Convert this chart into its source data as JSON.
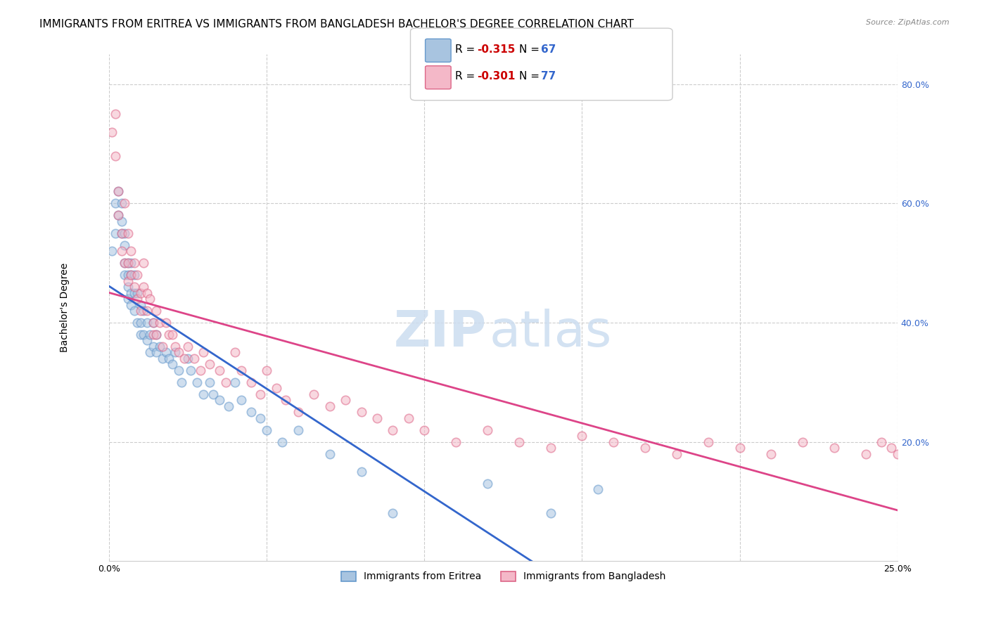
{
  "title": "IMMIGRANTS FROM ERITREA VS IMMIGRANTS FROM BANGLADESH BACHELOR'S DEGREE CORRELATION CHART",
  "source": "Source: ZipAtlas.com",
  "ylabel": "Bachelor's Degree",
  "x_min": 0.0,
  "x_max": 0.25,
  "y_min": 0.0,
  "y_max": 0.85,
  "yticks_right": [
    0.2,
    0.4,
    0.6,
    0.8
  ],
  "ytick_labels_right": [
    "20.0%",
    "40.0%",
    "60.0%",
    "80.0%"
  ],
  "xticks": [
    0.0,
    0.05,
    0.1,
    0.15,
    0.2,
    0.25
  ],
  "gridline_color": "#cccccc",
  "background_color": "#ffffff",
  "series": [
    {
      "name": "Immigrants from Eritrea",
      "color": "#a8c4e0",
      "edge_color": "#6699cc",
      "R": -0.315,
      "N": 67,
      "line_color": "#3366cc",
      "x": [
        0.001,
        0.002,
        0.002,
        0.003,
        0.003,
        0.004,
        0.004,
        0.004,
        0.005,
        0.005,
        0.005,
        0.005,
        0.006,
        0.006,
        0.006,
        0.006,
        0.007,
        0.007,
        0.007,
        0.007,
        0.008,
        0.008,
        0.008,
        0.009,
        0.009,
        0.01,
        0.01,
        0.01,
        0.011,
        0.011,
        0.012,
        0.012,
        0.013,
        0.013,
        0.014,
        0.014,
        0.015,
        0.015,
        0.016,
        0.017,
        0.018,
        0.019,
        0.02,
        0.021,
        0.022,
        0.023,
        0.025,
        0.026,
        0.028,
        0.03,
        0.032,
        0.033,
        0.035,
        0.038,
        0.04,
        0.042,
        0.045,
        0.048,
        0.05,
        0.055,
        0.06,
        0.07,
        0.08,
        0.09,
        0.12,
        0.14,
        0.155
      ],
      "y": [
        0.52,
        0.55,
        0.6,
        0.62,
        0.58,
        0.55,
        0.57,
        0.6,
        0.53,
        0.5,
        0.48,
        0.55,
        0.5,
        0.48,
        0.46,
        0.44,
        0.5,
        0.48,
        0.45,
        0.43,
        0.48,
        0.45,
        0.42,
        0.45,
        0.4,
        0.43,
        0.4,
        0.38,
        0.42,
        0.38,
        0.4,
        0.37,
        0.38,
        0.35,
        0.4,
        0.36,
        0.38,
        0.35,
        0.36,
        0.34,
        0.35,
        0.34,
        0.33,
        0.35,
        0.32,
        0.3,
        0.34,
        0.32,
        0.3,
        0.28,
        0.3,
        0.28,
        0.27,
        0.26,
        0.3,
        0.27,
        0.25,
        0.24,
        0.22,
        0.2,
        0.22,
        0.18,
        0.15,
        0.08,
        0.13,
        0.08,
        0.12
      ]
    },
    {
      "name": "Immigrants from Bangladesh",
      "color": "#f4b8c8",
      "edge_color": "#dd6688",
      "R": -0.301,
      "N": 77,
      "line_color": "#dd4488",
      "x": [
        0.001,
        0.002,
        0.002,
        0.003,
        0.003,
        0.004,
        0.004,
        0.005,
        0.005,
        0.006,
        0.006,
        0.006,
        0.007,
        0.007,
        0.008,
        0.008,
        0.009,
        0.009,
        0.01,
        0.01,
        0.011,
        0.011,
        0.012,
        0.012,
        0.013,
        0.014,
        0.014,
        0.015,
        0.015,
        0.016,
        0.017,
        0.018,
        0.019,
        0.02,
        0.021,
        0.022,
        0.024,
        0.025,
        0.027,
        0.029,
        0.03,
        0.032,
        0.035,
        0.037,
        0.04,
        0.042,
        0.045,
        0.048,
        0.05,
        0.053,
        0.056,
        0.06,
        0.065,
        0.07,
        0.075,
        0.08,
        0.085,
        0.09,
        0.095,
        0.1,
        0.11,
        0.12,
        0.13,
        0.14,
        0.15,
        0.16,
        0.17,
        0.18,
        0.19,
        0.2,
        0.21,
        0.22,
        0.23,
        0.24,
        0.245,
        0.248,
        0.25
      ],
      "y": [
        0.72,
        0.75,
        0.68,
        0.62,
        0.58,
        0.52,
        0.55,
        0.6,
        0.5,
        0.55,
        0.5,
        0.47,
        0.52,
        0.48,
        0.5,
        0.46,
        0.48,
        0.44,
        0.45,
        0.42,
        0.5,
        0.46,
        0.45,
        0.42,
        0.44,
        0.4,
        0.38,
        0.42,
        0.38,
        0.4,
        0.36,
        0.4,
        0.38,
        0.38,
        0.36,
        0.35,
        0.34,
        0.36,
        0.34,
        0.32,
        0.35,
        0.33,
        0.32,
        0.3,
        0.35,
        0.32,
        0.3,
        0.28,
        0.32,
        0.29,
        0.27,
        0.25,
        0.28,
        0.26,
        0.27,
        0.25,
        0.24,
        0.22,
        0.24,
        0.22,
        0.2,
        0.22,
        0.2,
        0.19,
        0.21,
        0.2,
        0.19,
        0.18,
        0.2,
        0.19,
        0.18,
        0.2,
        0.19,
        0.18,
        0.2,
        0.19,
        0.18
      ]
    }
  ],
  "legend_R_color": "#cc0000",
  "legend_N_color": "#3366cc",
  "title_fontsize": 11,
  "axis_label_fontsize": 10,
  "tick_fontsize": 9,
  "marker_size": 80,
  "marker_alpha": 0.55,
  "dashed_line_color": "#aaaaaa"
}
